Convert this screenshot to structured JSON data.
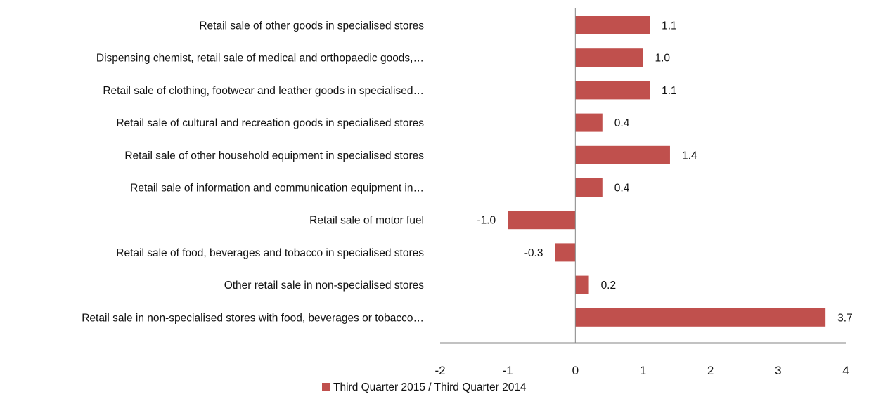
{
  "chart_data": {
    "type": "bar",
    "orientation": "horizontal",
    "categories": [
      "Retail sale of other goods in specialised stores",
      "Dispensing chemist, retail sale of medical and orthopaedic goods,…",
      "Retail sale of clothing, footwear and leather goods in specialised…",
      "Retail sale of cultural and recreation goods in specialised stores",
      "Retail sale of other household equipment in specialised stores",
      "Retail sale of information and communication equipment in…",
      "Retail sale of motor  fuel",
      "Retail sale of food, beverages and tobacco in specialised stores",
      "Other retail sale in non-specialised stores",
      "Retail sale in non-specialised stores with food, beverages or tobacco…"
    ],
    "series": [
      {
        "name": "Third Quarter 2015 / Third Quarter 2014",
        "color": "#C0504D",
        "values": [
          1.1,
          1.0,
          1.1,
          0.4,
          1.4,
          0.4,
          -1.0,
          -0.3,
          0.2,
          3.7
        ],
        "labels": [
          "1.1",
          "1.0",
          "1.1",
          "0.4",
          "1.4",
          "0.4",
          "-1.0",
          "-0.3",
          "0.2",
          "3.7"
        ]
      }
    ],
    "xlim": [
      -2,
      4
    ],
    "xticks": [
      -2,
      -1,
      0,
      1,
      2,
      3,
      4
    ],
    "xtick_labels": [
      "-2",
      "-1",
      "0",
      "1",
      "2",
      "3",
      "4"
    ],
    "grid": false,
    "legend_position": "bottom"
  }
}
